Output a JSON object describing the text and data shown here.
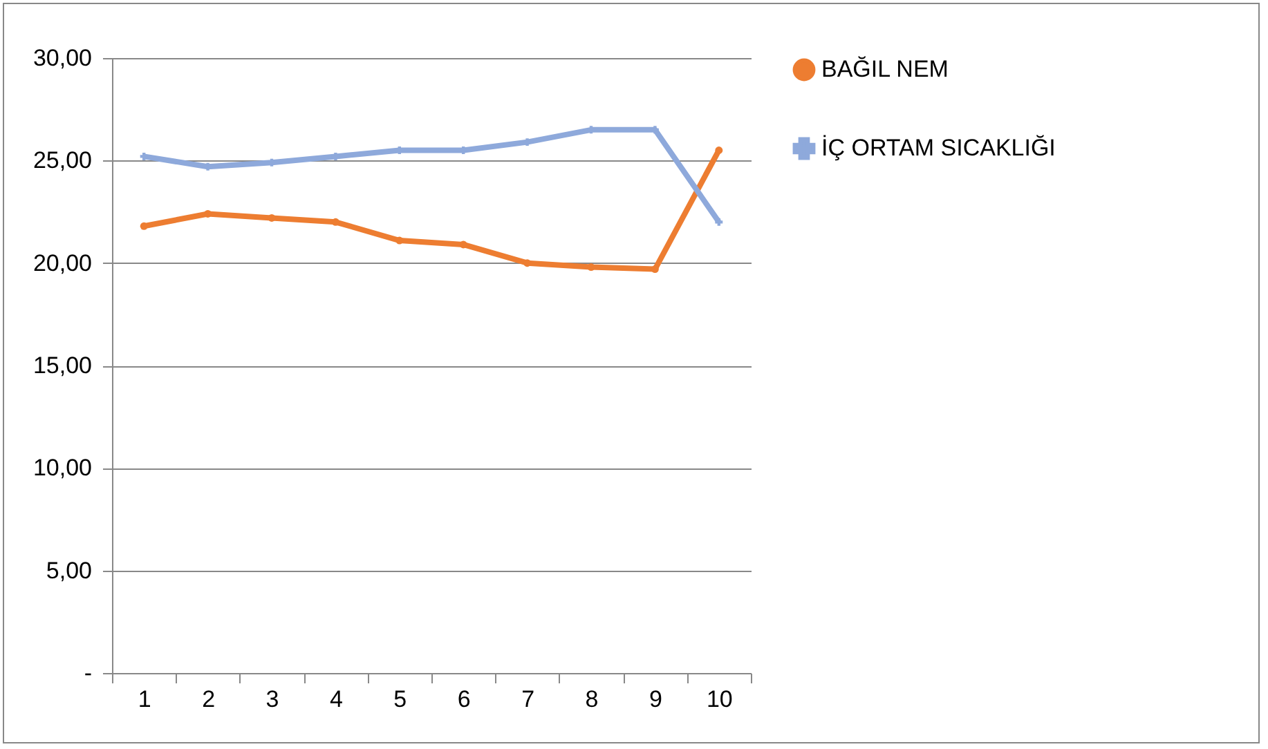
{
  "chart_data": {
    "type": "line",
    "categories": [
      "1",
      "2",
      "3",
      "4",
      "5",
      "6",
      "7",
      "8",
      "9",
      "10"
    ],
    "series": [
      {
        "name": "BAĞIL NEM",
        "color": "#ed7d31",
        "marker": "circle",
        "values": [
          21.8,
          22.4,
          22.2,
          22.0,
          21.1,
          20.9,
          20.0,
          19.8,
          19.7,
          25.5
        ]
      },
      {
        "name": "İÇ ORTAM SICAKLIĞI",
        "color": "#8ea9db",
        "marker": "cross",
        "values": [
          25.2,
          24.7,
          24.9,
          25.2,
          25.5,
          25.5,
          25.9,
          26.5,
          26.5,
          22.0
        ]
      }
    ],
    "ylim": [
      0,
      30
    ],
    "yticks": [
      {
        "value": 0,
        "label": "-"
      },
      {
        "value": 5,
        "label": "5,00"
      },
      {
        "value": 10,
        "label": "10,00"
      },
      {
        "value": 15,
        "label": "15,00"
      },
      {
        "value": 20,
        "label": "20,00"
      },
      {
        "value": 25,
        "label": "25,00"
      },
      {
        "value": 30,
        "label": "30,00"
      }
    ],
    "grid": "y",
    "legend": "right",
    "line_style": "solid"
  }
}
